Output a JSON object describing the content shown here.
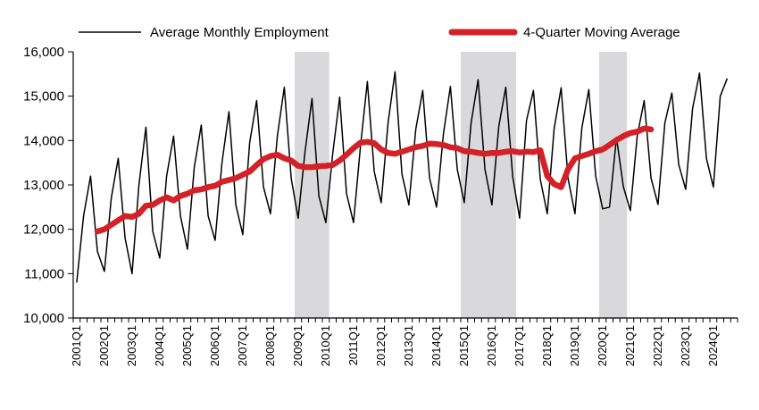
{
  "chart_data": {
    "type": "line",
    "title": "",
    "xlabel": "",
    "ylabel": "",
    "ylim": [
      10000,
      16000
    ],
    "yticks": [
      10000,
      11000,
      12000,
      13000,
      14000,
      15000,
      16000
    ],
    "ytick_labels": [
      "10,000",
      "11,000",
      "12,000",
      "13,000",
      "14,000",
      "15,000",
      "16,000"
    ],
    "x_start_year": 2001,
    "xtick_labels": [
      "2001Q1",
      "2002Q1",
      "2003Q1",
      "2004Q1",
      "2005Q1",
      "2006Q1",
      "2007Q1",
      "2008Q1",
      "2009Q1",
      "2010Q1",
      "2011Q1",
      "2012Q1",
      "2013Q1",
      "2014Q1",
      "2015Q1",
      "2016Q1",
      "2017Q1",
      "2018Q1",
      "2019Q1",
      "2020Q1",
      "2021Q1",
      "2022Q1",
      "2023Q1",
      "2024Q1"
    ],
    "legend": {
      "placement": "top",
      "entries": [
        "Average Monthly Employment",
        "4-Quarter Moving Average"
      ]
    },
    "shaded_periods": [
      {
        "start": "2009Q1",
        "end": "2010Q1"
      },
      {
        "start": "2015Q1",
        "end": "2016Q4"
      },
      {
        "start": "2020Q1",
        "end": "2020Q4"
      }
    ],
    "series": [
      {
        "name": "Average Monthly Employment",
        "color": "#000000",
        "values": [
          10800,
          12300,
          13200,
          11500,
          11050,
          12700,
          13600,
          11800,
          11000,
          13000,
          14300,
          11950,
          11350,
          13200,
          14100,
          12300,
          11550,
          13400,
          14350,
          12300,
          11750,
          13500,
          14650,
          12550,
          11880,
          13950,
          14900,
          12950,
          12350,
          14100,
          15200,
          13150,
          12250,
          13750,
          14950,
          12750,
          12150,
          13700,
          14980,
          12800,
          12150,
          13850,
          15330,
          13300,
          12600,
          14400,
          15550,
          13250,
          12550,
          14250,
          15130,
          13150,
          12500,
          14150,
          15220,
          13350,
          12600,
          14400,
          15370,
          13350,
          12550,
          14320,
          15200,
          13200,
          12250,
          14450,
          15130,
          13120,
          12350,
          14270,
          15190,
          13150,
          12350,
          14280,
          15150,
          13200,
          12460,
          12500,
          14070,
          12960,
          12420,
          14100,
          14900,
          13150,
          12560,
          14400,
          15070,
          13460,
          12900,
          14720,
          15520,
          13600,
          12950,
          15000,
          15400
        ]
      },
      {
        "name": "4-Quarter Moving Average",
        "color": "#d42027",
        "start_index": 3,
        "values": [
          11950,
          12000,
          12100,
          12200,
          12300,
          12280,
          12350,
          12530,
          12550,
          12650,
          12720,
          12650,
          12750,
          12800,
          12880,
          12900,
          12950,
          12980,
          13070,
          13110,
          13150,
          13230,
          13300,
          13450,
          13580,
          13650,
          13680,
          13600,
          13550,
          13430,
          13400,
          13400,
          13420,
          13430,
          13450,
          13550,
          13680,
          13830,
          13950,
          13970,
          13940,
          13800,
          13720,
          13700,
          13750,
          13800,
          13850,
          13880,
          13930,
          13920,
          13900,
          13850,
          13830,
          13760,
          13750,
          13720,
          13700,
          13720,
          13720,
          13750,
          13760,
          13730,
          13750,
          13740,
          13780,
          13200,
          13020,
          12950,
          13350,
          13600,
          13650,
          13700,
          13760,
          13800,
          13900,
          14010,
          14100,
          14170,
          14200,
          14270,
          14250
        ]
      }
    ]
  }
}
